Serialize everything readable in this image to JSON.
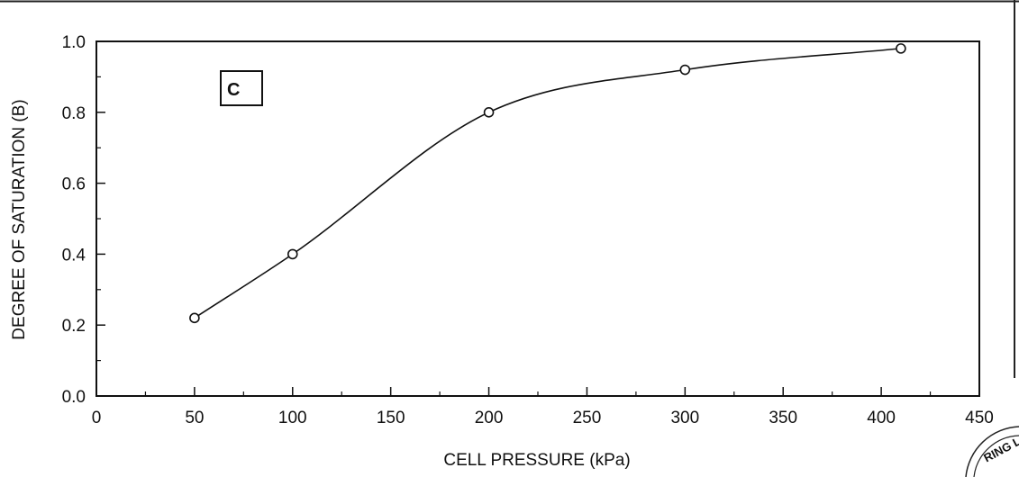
{
  "chart_data": {
    "type": "line",
    "title": "",
    "panel_label": "C",
    "xlabel": "CELL PRESSURE (kPa)",
    "ylabel": "DEGREE OF SATURATION (B)",
    "xlim": [
      0,
      450
    ],
    "ylim": [
      0.0,
      1.0
    ],
    "x_ticks": [
      "0",
      "50",
      "100",
      "150",
      "200",
      "250",
      "300",
      "350",
      "400",
      "450"
    ],
    "y_ticks": [
      "0.0",
      "0.2",
      "0.4",
      "0.6",
      "0.8",
      "1.0"
    ],
    "grid": false,
    "marker": "open-circle",
    "smooth": true,
    "series": [
      {
        "x": [
          50,
          100,
          200,
          300,
          410
        ],
        "y": [
          0.22,
          0.4,
          0.8,
          0.92,
          0.98
        ]
      }
    ]
  },
  "stamp": {
    "text": "RING LA"
  },
  "colors": {
    "ink": "#111111",
    "background": "#ffffff"
  }
}
